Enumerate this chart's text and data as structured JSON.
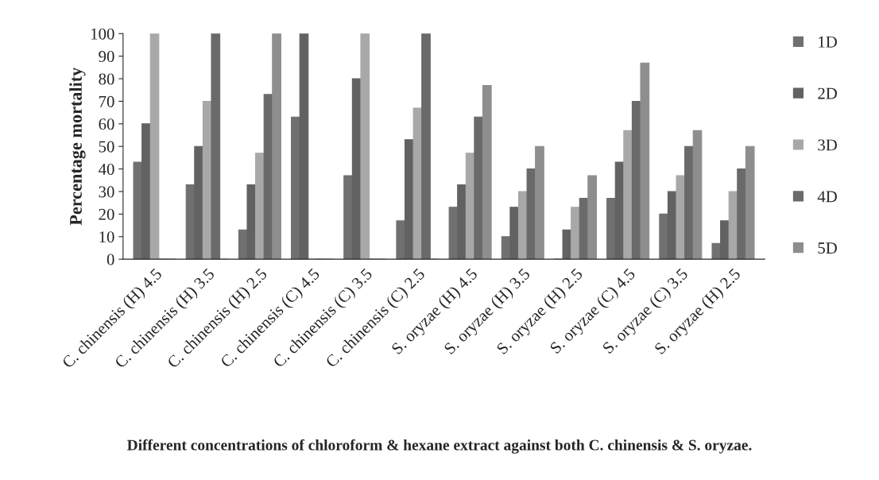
{
  "chart_data": {
    "type": "bar",
    "xlabel": "Different concentrations of chloroform & hexane extract against both C. chinensis & S. oryzae.",
    "ylabel": "Percentage mortality",
    "categories": [
      "C. chinensis (H) 4.5",
      "C. chinensis (H) 3.5",
      "C. chinensis (H) 2.5",
      "C. chinensis (C) 4.5",
      "C. chinensis (C) 3.5",
      "C. chinensis (C) 2.5",
      "S. oryzae (H) 4.5",
      "S. oryzae (H) 3.5",
      "S. oryzae (H) 2.5",
      "S. oryzae (C) 4.5",
      "S. oryzae (C) 3.5",
      "S. oryzae (H) 2.5"
    ],
    "series": [
      {
        "name": "1D",
        "color": "#707070",
        "values": [
          43,
          33,
          13,
          63,
          37,
          17,
          23,
          10,
          0,
          27,
          20,
          7
        ]
      },
      {
        "name": "2D",
        "color": "#626262",
        "values": [
          60,
          50,
          33,
          100,
          80,
          53,
          33,
          23,
          13,
          43,
          30,
          17
        ]
      },
      {
        "name": "3D",
        "color": "#a8a8a8",
        "values": [
          100,
          70,
          47,
          0,
          100,
          67,
          47,
          30,
          23,
          57,
          37,
          30
        ]
      },
      {
        "name": "4D",
        "color": "#6a6a6a",
        "values": [
          0,
          100,
          73,
          0,
          0,
          100,
          63,
          40,
          27,
          70,
          50,
          40
        ]
      },
      {
        "name": "5D",
        "color": "#8e8e8e",
        "values": [
          0,
          0,
          100,
          0,
          0,
          0,
          77,
          50,
          37,
          87,
          57,
          50
        ]
      }
    ],
    "ylim": [
      0,
      100
    ],
    "yticks": [
      0,
      10,
      20,
      30,
      40,
      50,
      60,
      70,
      80,
      90,
      100
    ],
    "grid": false,
    "legend": "right"
  }
}
